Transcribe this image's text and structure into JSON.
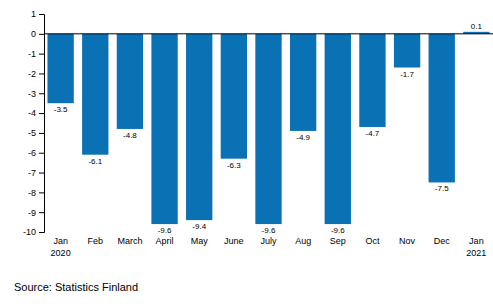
{
  "chart_data": {
    "type": "bar",
    "categories": [
      "Jan 2020",
      "Feb",
      "March",
      "April",
      "May",
      "June",
      "July",
      "Aug",
      "Sep",
      "Oct",
      "Nov",
      "Dec",
      "Jan 2021"
    ],
    "values": [
      -3.5,
      -6.1,
      -4.8,
      -9.6,
      -9.4,
      -6.3,
      -9.6,
      -4.9,
      -9.6,
      -4.7,
      -1.7,
      -7.5,
      0.1
    ],
    "color": "#0a71b4",
    "ylim": [
      -10,
      1
    ],
    "yticks": [
      -10,
      -9,
      -8,
      -7,
      -6,
      -5,
      -4,
      -3,
      -2,
      -1,
      0,
      1
    ],
    "grid": false,
    "data_labels": true,
    "source": "Source: Statistics Finland"
  }
}
